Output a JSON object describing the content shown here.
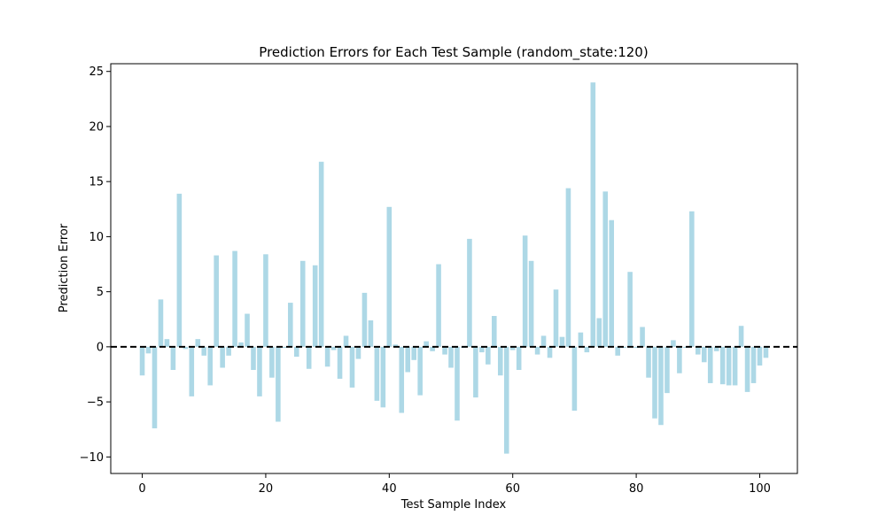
{
  "chart_data": {
    "type": "bar",
    "title": "Prediction Errors for Each Test Sample (random_state:120)",
    "xlabel": "Test Sample Index",
    "ylabel": "Prediction Error",
    "xlim": [
      -5.1,
      106.1
    ],
    "ylim": [
      -11.5,
      25.7
    ],
    "xticks": [
      0,
      20,
      40,
      60,
      80,
      100
    ],
    "xtick_labels": [
      "0",
      "20",
      "40",
      "60",
      "80",
      "100"
    ],
    "yticks": [
      -10,
      -5,
      0,
      5,
      10,
      15,
      20,
      25
    ],
    "ytick_labels": [
      "−10",
      "−5",
      "0",
      "5",
      "10",
      "15",
      "20",
      "25"
    ],
    "bar_color": "#add8e6",
    "reference_line": {
      "y": 0,
      "color": "#000000",
      "style": "dashed"
    },
    "grid": false,
    "x": [
      0,
      1,
      2,
      3,
      4,
      5,
      6,
      7,
      8,
      9,
      10,
      11,
      12,
      13,
      14,
      15,
      16,
      17,
      18,
      19,
      20,
      21,
      22,
      23,
      24,
      25,
      26,
      27,
      28,
      29,
      30,
      31,
      32,
      33,
      34,
      35,
      36,
      37,
      38,
      39,
      40,
      41,
      42,
      43,
      44,
      45,
      46,
      47,
      48,
      49,
      50,
      51,
      52,
      53,
      54,
      55,
      56,
      57,
      58,
      59,
      60,
      61,
      62,
      63,
      64,
      65,
      66,
      67,
      68,
      69,
      70,
      71,
      72,
      73,
      74,
      75,
      76,
      77,
      78,
      79,
      80,
      81,
      82,
      83,
      84,
      85,
      86,
      87,
      88,
      89,
      90,
      91,
      92,
      93,
      94,
      95,
      96,
      97,
      98,
      99,
      100,
      101
    ],
    "values": [
      -2.6,
      -0.6,
      -7.4,
      4.3,
      0.7,
      -2.1,
      13.9,
      -0.2,
      -4.5,
      0.7,
      -0.8,
      -3.5,
      8.3,
      -1.9,
      -0.8,
      8.7,
      0.4,
      3.0,
      -2.1,
      -4.5,
      8.4,
      -2.8,
      -6.8,
      -0.1,
      4.0,
      -0.9,
      7.8,
      -2.0,
      7.4,
      16.8,
      -1.8,
      -0.3,
      -2.9,
      1.0,
      -3.7,
      -1.1,
      4.9,
      2.4,
      -4.9,
      -5.5,
      12.7,
      0.2,
      -6.0,
      -2.3,
      -1.2,
      -4.4,
      0.5,
      -0.4,
      7.5,
      -0.7,
      -1.9,
      -6.7,
      -0.1,
      9.8,
      -4.6,
      -0.5,
      -1.6,
      2.8,
      -2.6,
      -9.7,
      -0.3,
      -2.1,
      10.1,
      7.8,
      -0.7,
      1.0,
      -1.0,
      5.2,
      0.9,
      14.4,
      -5.8,
      1.3,
      -0.5,
      24.0,
      2.6,
      14.1,
      11.5,
      -0.8,
      -0.1,
      6.8,
      -0.1,
      1.8,
      -2.8,
      -6.5,
      -7.1,
      -4.2,
      0.6,
      -2.4,
      -0.1,
      12.3,
      -0.7,
      -1.4,
      -3.3,
      -0.4,
      -3.4,
      -3.5,
      -3.5,
      1.9,
      -4.1,
      -3.3,
      -1.7,
      -1.0
    ]
  }
}
